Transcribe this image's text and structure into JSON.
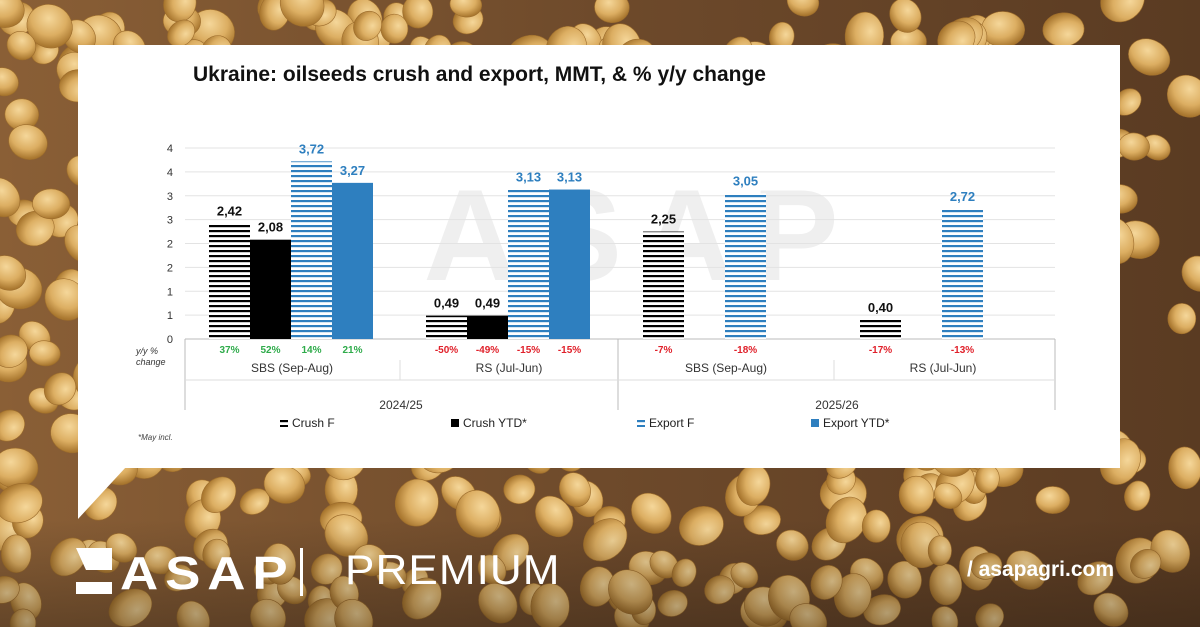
{
  "chart_data": {
    "type": "bar",
    "title": "Ukraine: oilseeds crush and export, MMT, & % y/y change",
    "y_ticks": [
      "0",
      "1",
      "1",
      "2",
      "2",
      "3",
      "3",
      "4",
      "4"
    ],
    "ylim": [
      0,
      4
    ],
    "yoy_label": "y/y % change",
    "groups": [
      {
        "season": "2024/25",
        "crop": "SBS (Sep-Aug)",
        "bars": [
          {
            "series": "Crush F",
            "value": 2.42,
            "label": "2,42",
            "yoy": "37%"
          },
          {
            "series": "Crush YTD*",
            "value": 2.08,
            "label": "2,08",
            "yoy": "52%"
          },
          {
            "series": "Export F",
            "value": 3.72,
            "label": "3,72",
            "yoy": "14%"
          },
          {
            "series": "Export YTD*",
            "value": 3.27,
            "label": "3,27",
            "yoy": "21%"
          }
        ]
      },
      {
        "season": "2024/25",
        "crop": "RS (Jul-Jun)",
        "bars": [
          {
            "series": "Crush F",
            "value": 0.49,
            "label": "0,49",
            "yoy": "-50%"
          },
          {
            "series": "Crush YTD*",
            "value": 0.49,
            "label": "0,49",
            "yoy": "-49%"
          },
          {
            "series": "Export F",
            "value": 3.13,
            "label": "3,13",
            "yoy": "-15%"
          },
          {
            "series": "Export YTD*",
            "value": 3.13,
            "label": "3,13",
            "yoy": "-15%"
          }
        ]
      },
      {
        "season": "2025/26",
        "crop": "SBS (Sep-Aug)",
        "bars": [
          {
            "series": "Crush F",
            "value": 2.25,
            "label": "2,25",
            "yoy": "-7%"
          },
          {
            "series": "Export F",
            "value": 3.05,
            "label": "3,05",
            "yoy": "-18%"
          }
        ]
      },
      {
        "season": "2025/26",
        "crop": "RS (Jul-Jun)",
        "bars": [
          {
            "series": "Crush F",
            "value": 0.4,
            "label": "0,40",
            "yoy": "-17%"
          },
          {
            "series": "Export F",
            "value": 2.72,
            "label": "2,72",
            "yoy": "-13%"
          }
        ]
      }
    ],
    "seasons": [
      "2024/25",
      "2025/26"
    ],
    "legend": [
      "Crush F",
      "Crush YTD*",
      "Export F",
      "Export YTD*"
    ],
    "legend_position": "bottom",
    "footnote": "*May incl.",
    "watermark": "ASAP",
    "colors": {
      "crush": "#000000",
      "export": "#2e7fbf",
      "pos": "#2eab4a",
      "neg": "#e0202a"
    }
  },
  "brand": {
    "logo": "ASAP",
    "tier": "PREMIUM",
    "site": "/ asapagri.com"
  }
}
